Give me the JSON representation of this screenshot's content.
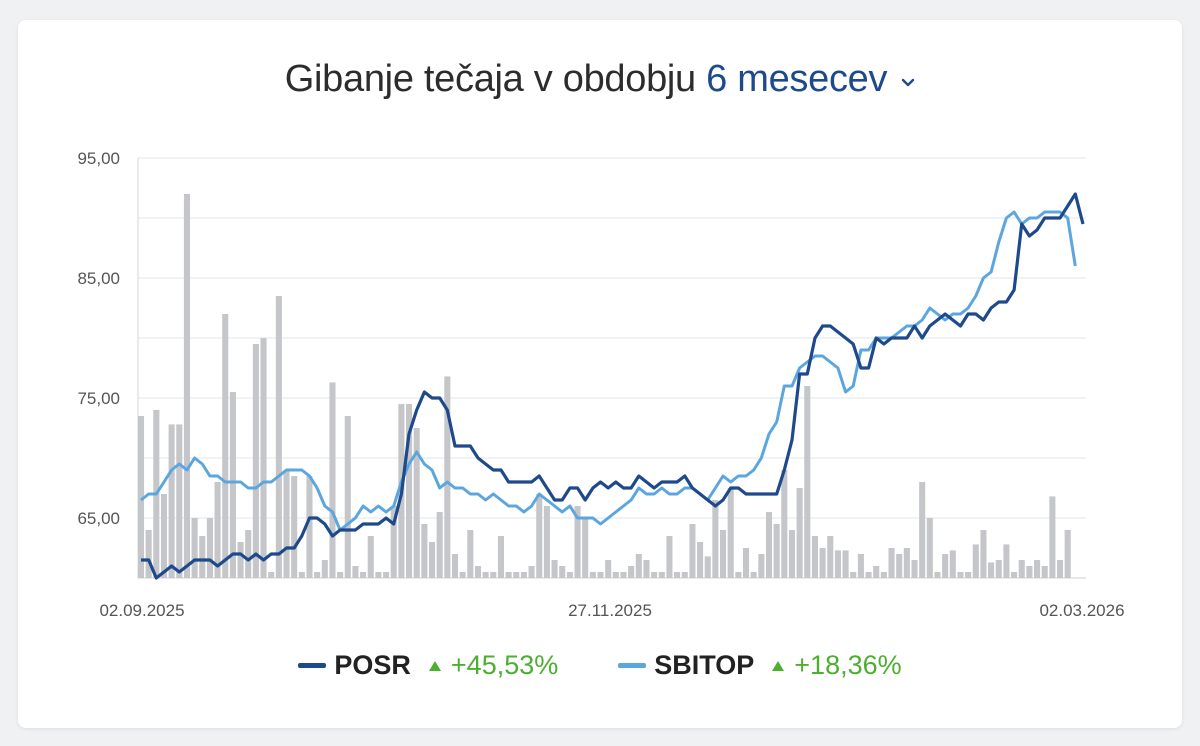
{
  "header": {
    "title_text": "Gibanje tečaja v obdobju",
    "period_label": "6 mesecev"
  },
  "colors": {
    "posr": "#1e4a8c",
    "sbitop": "#5ca6e0",
    "volume": "#c4c6c9",
    "up": "#4caf30",
    "grid": "#e2e4e7"
  },
  "legend": [
    {
      "name": "POSR",
      "change": "+45,53%"
    },
    {
      "name": "SBITOP",
      "change": "+18,36%"
    }
  ],
  "chart_data": {
    "type": "line",
    "ylim": [
      60,
      95
    ],
    "yticks": [
      65,
      75,
      85,
      95
    ],
    "ytick_labels": [
      "65,00",
      "75,00",
      "85,00",
      "95,00"
    ],
    "x_tick_labels": [
      "02.09.2025",
      "27.11.2025",
      "02.03.2026"
    ],
    "grid": true,
    "legend_position": "bottom",
    "series": [
      {
        "name": "POSR",
        "values": [
          61.5,
          61.5,
          60,
          60.5,
          61,
          60.5,
          61,
          61.5,
          61.5,
          61.5,
          61,
          61.5,
          62,
          62,
          61.5,
          62,
          61.5,
          62,
          62,
          62.5,
          62.5,
          63.5,
          65,
          65,
          64.5,
          63.5,
          64,
          64,
          64,
          64.5,
          64.5,
          64.5,
          65,
          64.5,
          67,
          72,
          74,
          75.5,
          75,
          75,
          74,
          71,
          71,
          71,
          70,
          69.5,
          69,
          69,
          68,
          68,
          68,
          68,
          68.5,
          67.5,
          66.5,
          66.5,
          67.5,
          67.5,
          66.5,
          67.5,
          68,
          67.5,
          68,
          67.5,
          67.5,
          68.5,
          68,
          67.5,
          68,
          68,
          68,
          68.5,
          67.5,
          67,
          66.5,
          66,
          66.5,
          67.5,
          67.5,
          67,
          67,
          67,
          67,
          67,
          69,
          71.5,
          77,
          77,
          80,
          81,
          81,
          80.5,
          80,
          79.5,
          77.5,
          77.5,
          80,
          79.5,
          80,
          80,
          80,
          81,
          80,
          81,
          81.5,
          82,
          81.5,
          81,
          82,
          82,
          81.5,
          82.5,
          83,
          83,
          84,
          89.5,
          88.5,
          89,
          90,
          90,
          90,
          91,
          92,
          89.5
        ]
      },
      {
        "name": "SBITOP",
        "values": [
          66.5,
          67,
          67,
          68,
          69,
          69.5,
          69,
          70,
          69.5,
          68.5,
          68.5,
          68,
          68,
          68,
          67.5,
          67.5,
          68,
          68,
          68.5,
          69,
          69,
          69,
          68.5,
          67.5,
          66,
          65.5,
          64,
          64.5,
          65,
          66,
          65.5,
          66,
          65.5,
          66,
          68,
          69.5,
          70.5,
          69.5,
          69,
          67.5,
          68,
          67.5,
          67.5,
          67,
          67,
          66.5,
          67,
          66.5,
          66,
          66,
          65.5,
          66,
          67,
          66.5,
          66,
          65.5,
          66,
          65,
          65,
          65,
          64.5,
          65,
          65.5,
          66,
          66.5,
          67.5,
          67,
          67,
          67.5,
          67,
          67,
          67.5,
          67.5,
          67,
          66.5,
          67.5,
          68.5,
          68,
          68.5,
          68.5,
          69,
          70,
          72,
          73,
          76,
          76,
          77.5,
          78,
          78.5,
          78.5,
          78,
          77.5,
          75.5,
          76,
          79,
          79,
          80,
          80,
          80,
          80.5,
          81,
          81,
          81.5,
          82.5,
          82,
          81.5,
          82,
          82,
          82.5,
          83.5,
          85,
          85.5,
          88,
          90,
          90.5,
          89.5,
          90,
          90,
          90.5,
          90.5,
          90.5,
          90,
          86
        ]
      },
      {
        "name": "Volume",
        "values": [
          73.5,
          64,
          74,
          67,
          72.8,
          72.8,
          92,
          65,
          63.5,
          65,
          68,
          82,
          75.5,
          63,
          64,
          79.5,
          80,
          60.5,
          83.5,
          69,
          68.5,
          60.5,
          68.5,
          60.5,
          61.5,
          76.3,
          60.5,
          73.5,
          61,
          60.5,
          63.5,
          60.5,
          60.5,
          66,
          74.5,
          74.5,
          72.5,
          64.5,
          63,
          65.5,
          76.8,
          62,
          60.5,
          64,
          61,
          60.5,
          60.5,
          63.5,
          60.5,
          60.5,
          60.5,
          61,
          67,
          66,
          61.5,
          61,
          60.5,
          66,
          65,
          60.5,
          60.5,
          61.5,
          60.5,
          60.5,
          61,
          62,
          61.5,
          60.5,
          60.5,
          63.5,
          60.5,
          60.5,
          64.5,
          63,
          61.8,
          66.5,
          64,
          67.5,
          60.5,
          62.5,
          60.5,
          62,
          65.5,
          64.5,
          69,
          64,
          67.5,
          76,
          63.5,
          62.5,
          63.5,
          62.3,
          62.3,
          60.5,
          62,
          60.5,
          61,
          60.5,
          62.5,
          62,
          62.5,
          61.5,
          68,
          65,
          60.5,
          62,
          62.3,
          60.5,
          60.5,
          62.8,
          64,
          61.3,
          61.5,
          62.8,
          60.5,
          61.5,
          61,
          61.5,
          61,
          66.8,
          61.5,
          64
        ]
      }
    ]
  }
}
